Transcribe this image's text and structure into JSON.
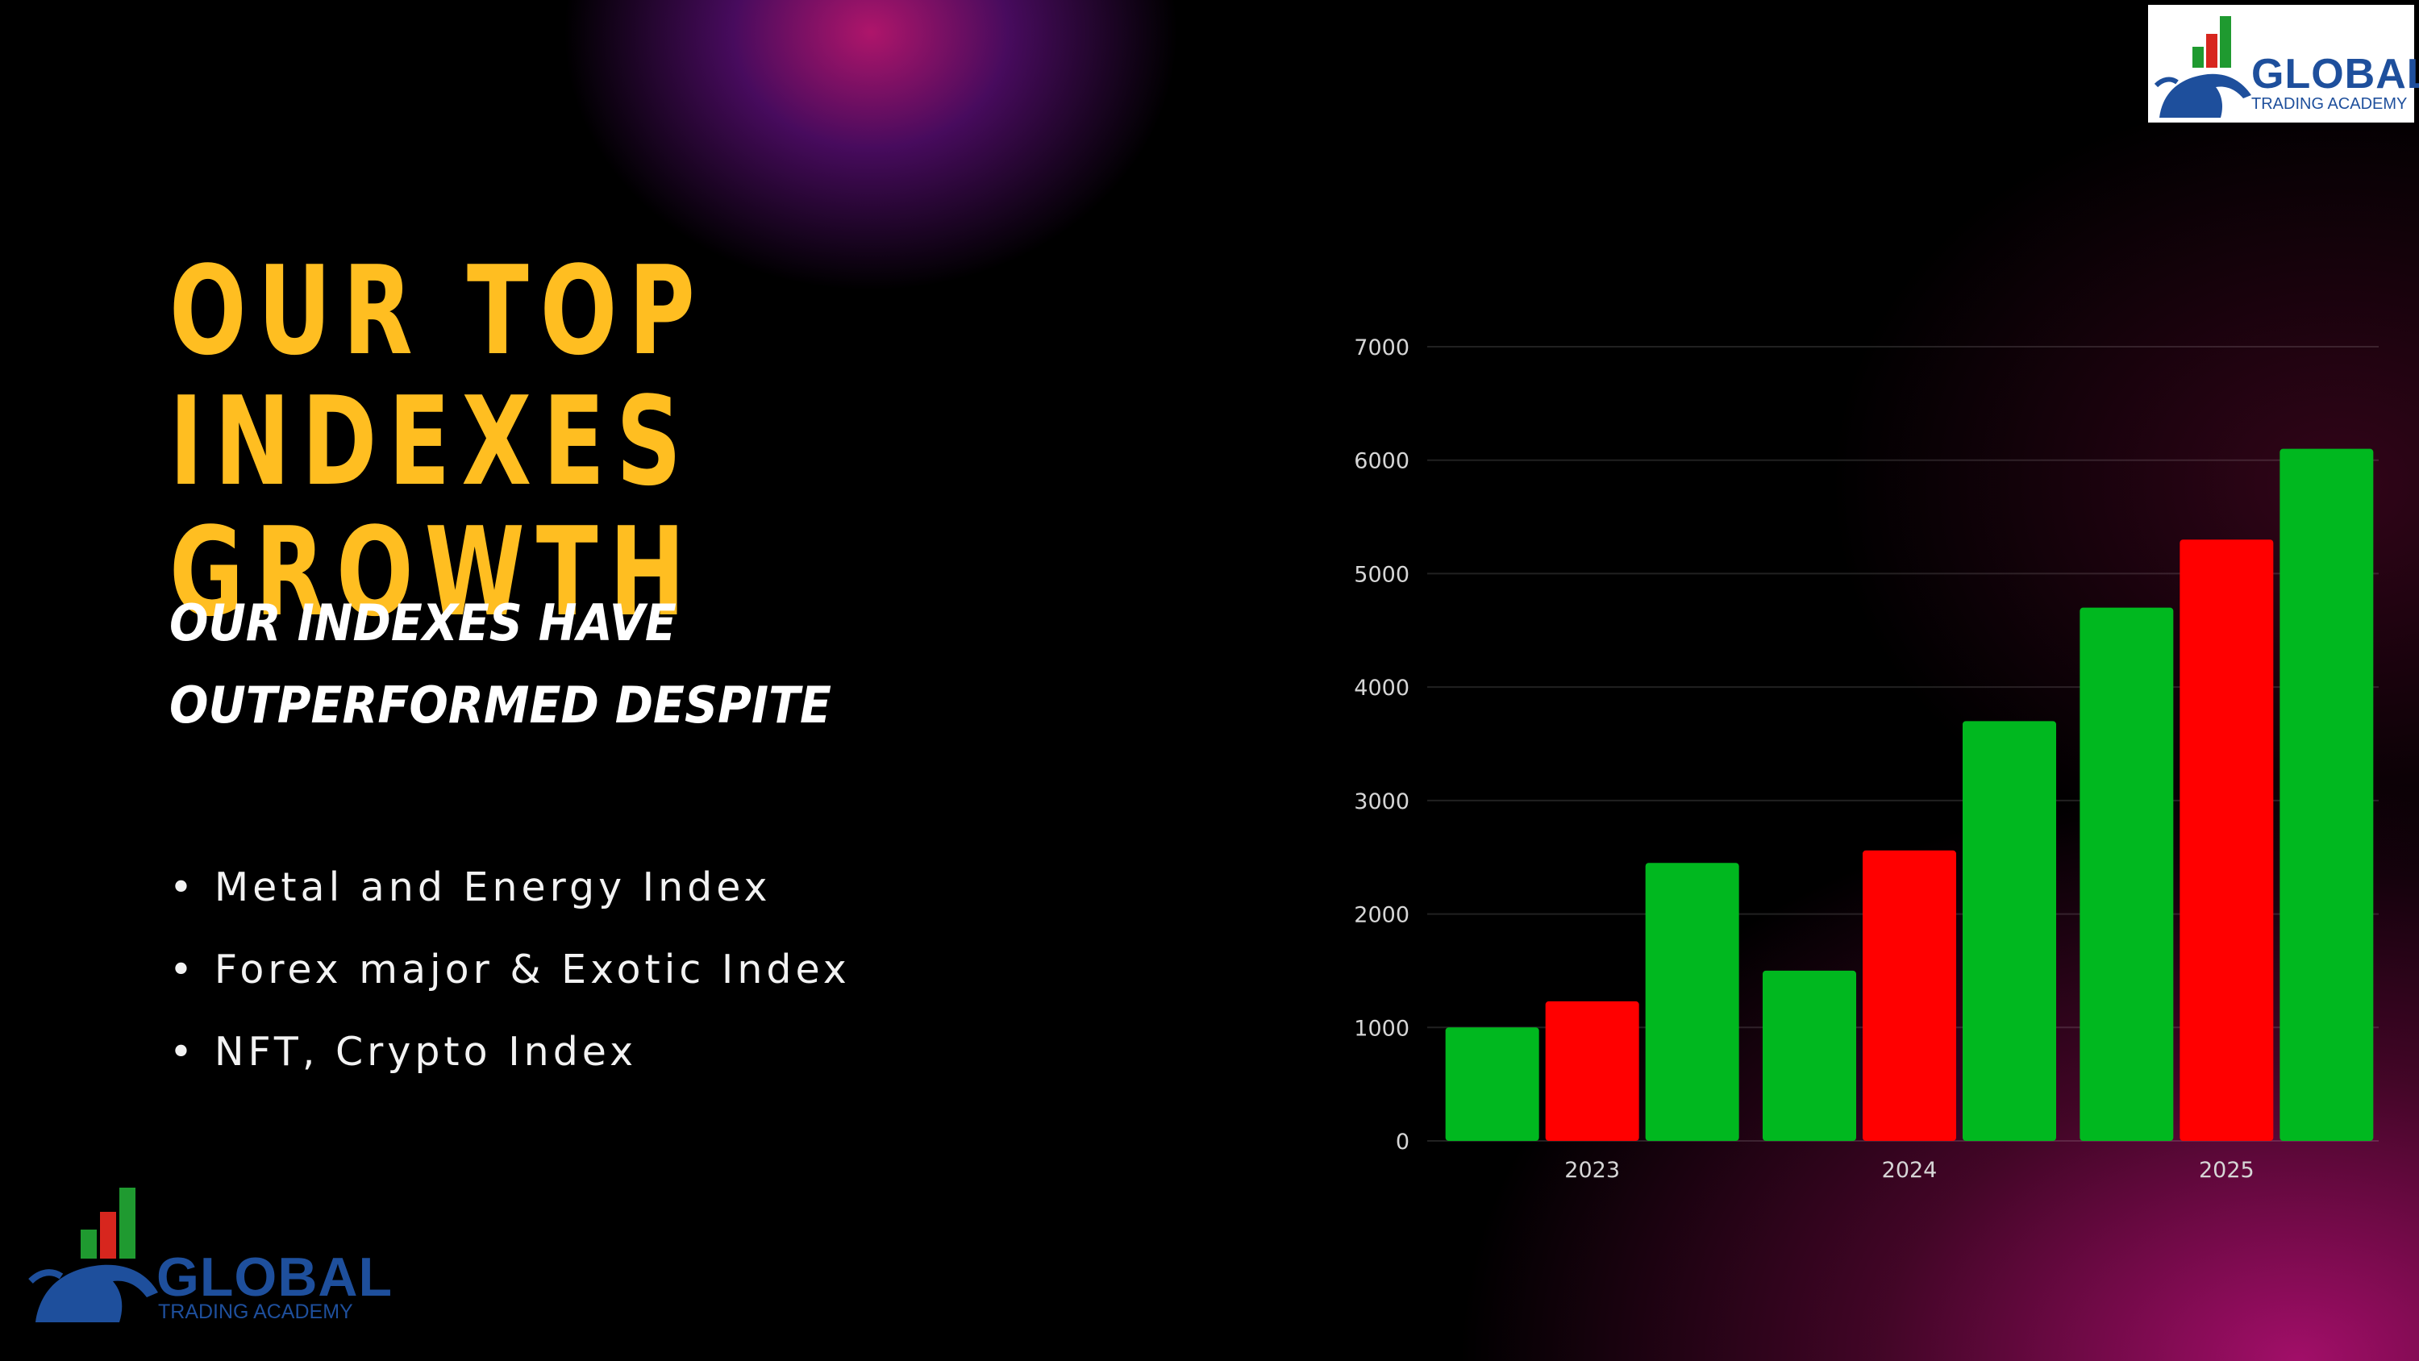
{
  "slide": {
    "title_lines": [
      "OUR TOP INDEXES",
      "GROWTH"
    ],
    "subtitle_lines": [
      "OUR INDEXES HAVE",
      "OUTPERFORMED DESPITE"
    ],
    "bullet_char": "•",
    "bullets": [
      "Metal and Energy Index",
      "Forex major & Exotic Index",
      "NFT, Crypto Index"
    ]
  },
  "logos": {
    "main_text": "GLOBAL",
    "sub_text": "TRADING ACADEMY"
  },
  "colors": {
    "title": "#ffbe21",
    "bar_green": "#00b81f",
    "bar_red": "#ff0000",
    "logo_blue": "#1e4f9c"
  },
  "chart_data": {
    "type": "bar",
    "categories": [
      "2023",
      "2024",
      "2025"
    ],
    "series": [
      {
        "color": "#00b81f",
        "values": [
          1000,
          1500,
          4700
        ]
      },
      {
        "color": "#ff0000",
        "values": [
          1230,
          2560,
          5300
        ]
      },
      {
        "color": "#00b81f",
        "values": [
          2450,
          3700,
          6100
        ]
      }
    ],
    "ylim": [
      0,
      7000
    ],
    "yticks": [
      0,
      1000,
      2000,
      3000,
      4000,
      5000,
      6000,
      7000
    ],
    "grid": true,
    "legend": "none"
  }
}
